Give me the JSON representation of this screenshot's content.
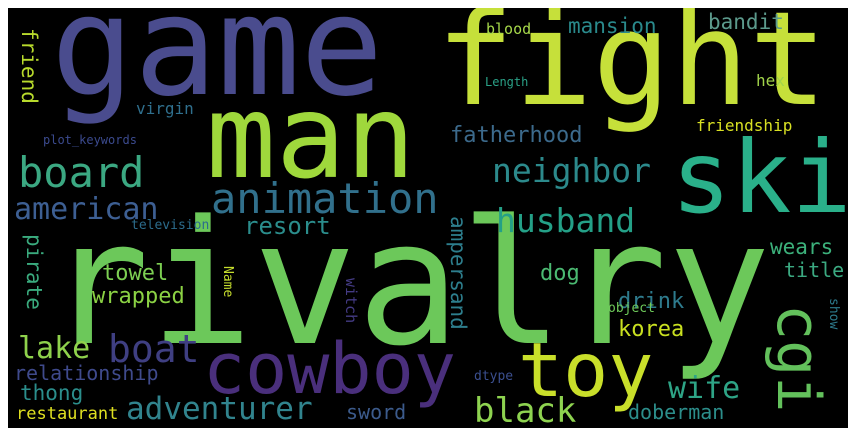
{
  "colors": {
    "background": "#000000",
    "palette": [
      "#482777",
      "#3f4a8a",
      "#31678e",
      "#26838f",
      "#1f9d8a",
      "#6cce5a",
      "#b6de2b",
      "#fee825"
    ]
  },
  "words": [
    {
      "text": "game",
      "color": "#4a4c8e"
    },
    {
      "text": "fight",
      "color": "#c6e03a"
    },
    {
      "text": "man",
      "color": "#9fd83c"
    },
    {
      "text": "ski",
      "color": "#2ab08a"
    },
    {
      "text": "rivalry",
      "color": "#6cc85a"
    },
    {
      "text": "toy",
      "color": "#c9df2a"
    },
    {
      "text": "cowboy",
      "color": "#4a2f7c"
    },
    {
      "text": "cgi",
      "color": "#63c15c"
    },
    {
      "text": "board",
      "color": "#3ba882"
    },
    {
      "text": "animation",
      "color": "#31708c"
    },
    {
      "text": "american",
      "color": "#3d5f93"
    },
    {
      "text": "neighbor",
      "color": "#2c8a8c"
    },
    {
      "text": "husband",
      "color": "#24a087"
    },
    {
      "text": "boat",
      "color": "#3f3f82"
    },
    {
      "text": "lake",
      "color": "#8fd24c"
    },
    {
      "text": "black",
      "color": "#8ed350"
    },
    {
      "text": "adventurer",
      "color": "#31848e"
    },
    {
      "text": "wife",
      "color": "#2ea486"
    },
    {
      "text": "resort",
      "color": "#2b8d8c"
    },
    {
      "text": "towel",
      "color": "#7ccf52"
    },
    {
      "text": "wrapped",
      "color": "#8bd244"
    },
    {
      "text": "dog",
      "color": "#4bba72"
    },
    {
      "text": "drink",
      "color": "#2e7b8d"
    },
    {
      "text": "korea",
      "color": "#c9e020"
    },
    {
      "text": "wears",
      "color": "#3cb17b"
    },
    {
      "text": "title",
      "color": "#3ba981"
    },
    {
      "text": "fatherhood",
      "color": "#3c6a8c"
    },
    {
      "text": "mansion",
      "color": "#2a8a8c"
    },
    {
      "text": "bandit",
      "color": "#5c9a8c"
    },
    {
      "text": "blood",
      "color": "#a6d84a"
    },
    {
      "text": "friendship",
      "color": "#d8e023"
    },
    {
      "text": "hex",
      "color": "#a2d44a"
    },
    {
      "text": "virgin",
      "color": "#2f6f8d"
    },
    {
      "text": "friend",
      "color": "#b8da2c"
    },
    {
      "text": "plot_keywords",
      "color": "#3b4a8e"
    },
    {
      "text": "Length",
      "color": "#2aa187"
    },
    {
      "text": "television",
      "color": "#2c6c8c"
    },
    {
      "text": "pirate",
      "color": "#3aab7e"
    },
    {
      "text": "relationship",
      "color": "#3f4a8c"
    },
    {
      "text": "thong",
      "color": "#2b8e8c"
    },
    {
      "text": "restaurant",
      "color": "#dfe021"
    },
    {
      "text": "sword",
      "color": "#3c5b8c"
    },
    {
      "text": "doberman",
      "color": "#2c8e8b"
    },
    {
      "text": "ampersand",
      "color": "#2d7e8d"
    },
    {
      "text": "Name",
      "color": "#c5dc2d"
    },
    {
      "text": "witch",
      "color": "#443b84"
    },
    {
      "text": "object",
      "color": "#6ec95a"
    },
    {
      "text": "dtype",
      "color": "#3b4f8f"
    },
    {
      "text": "show",
      "color": "#2d7a8c"
    }
  ]
}
